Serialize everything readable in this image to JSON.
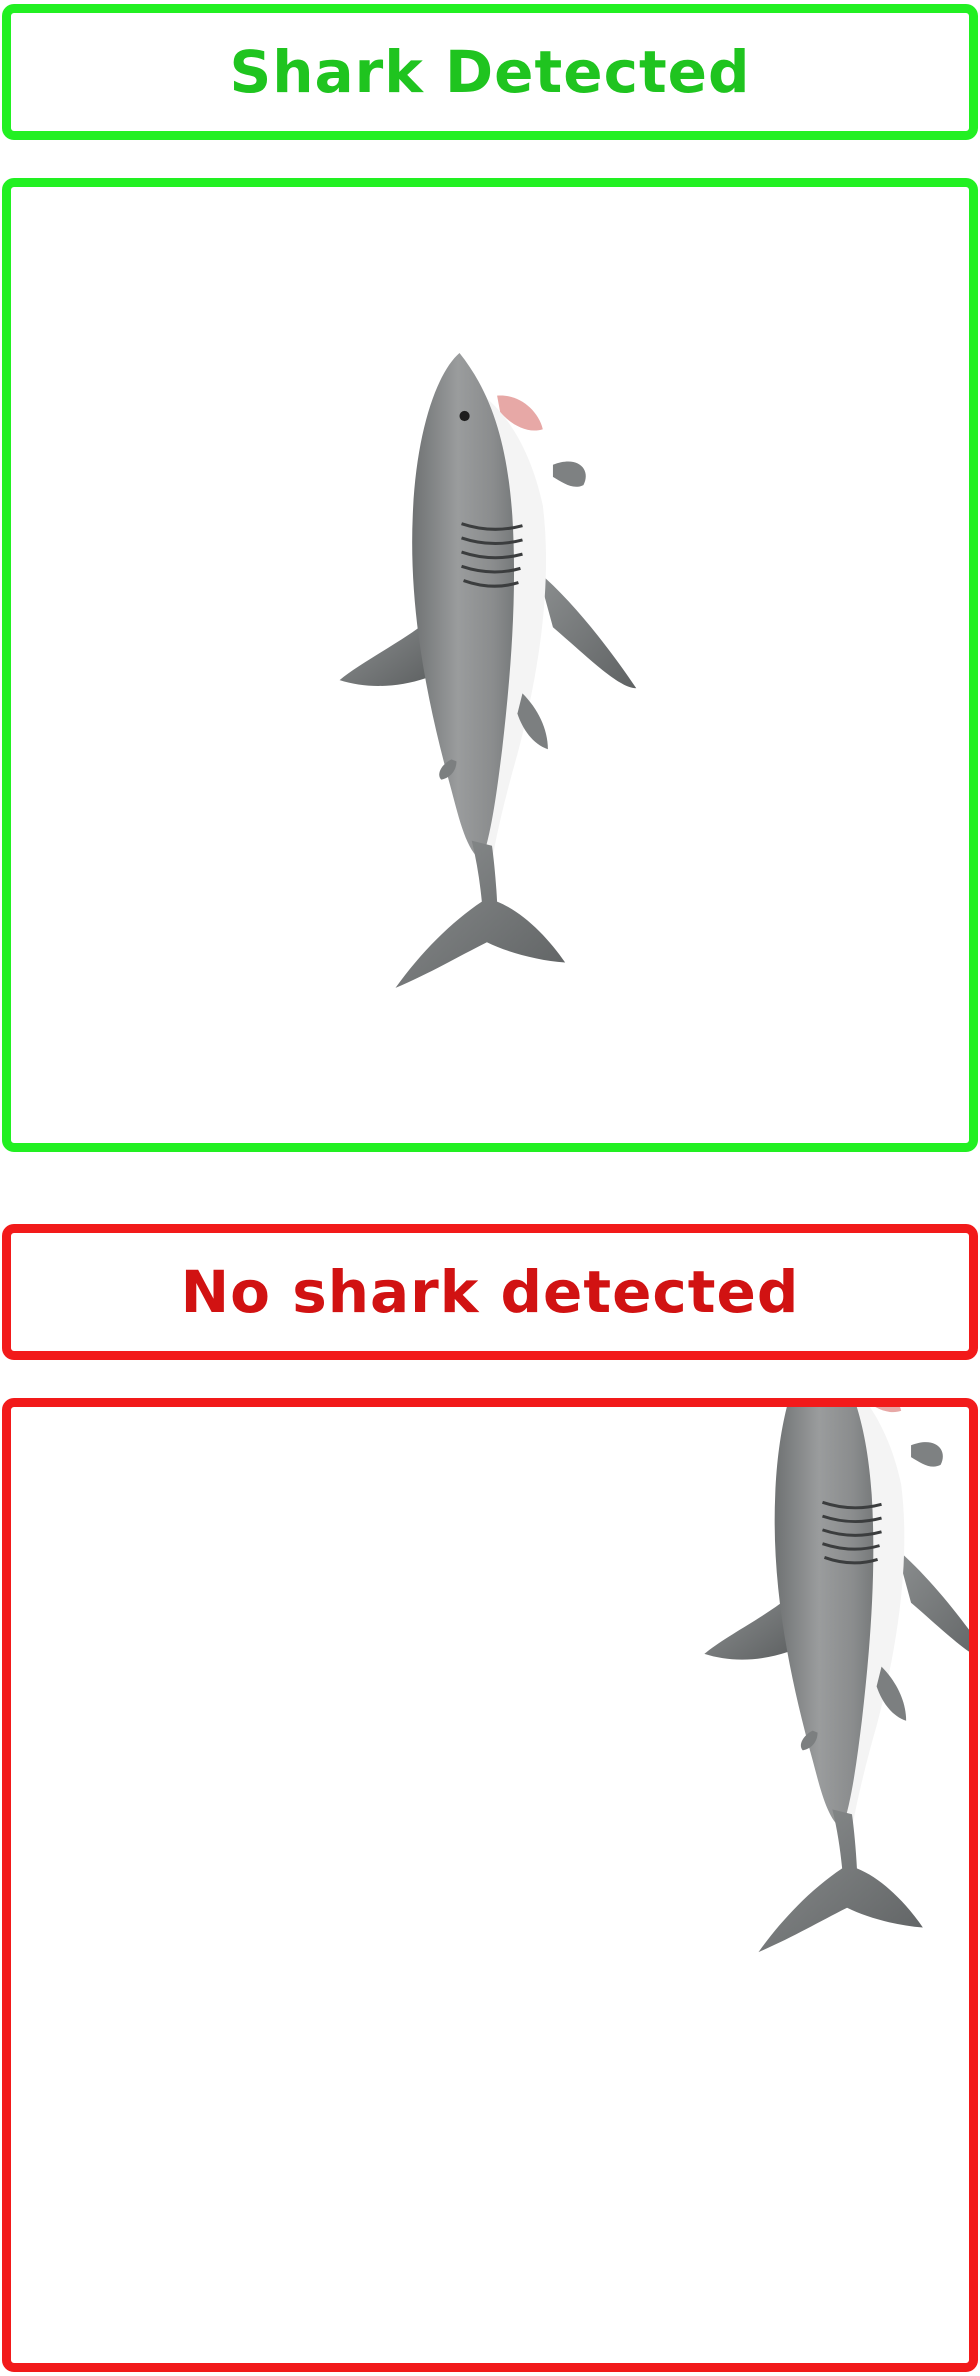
{
  "detected_panel": {
    "label": "Shark Detected",
    "accent_color": "#22f022",
    "text_color": "#1fc41f",
    "image_icon": "shark-icon"
  },
  "not_detected_panel": {
    "label": "No shark detected",
    "accent_color": "#f21a1a",
    "text_color": "#d11212",
    "image_icon": "shark-icon"
  }
}
